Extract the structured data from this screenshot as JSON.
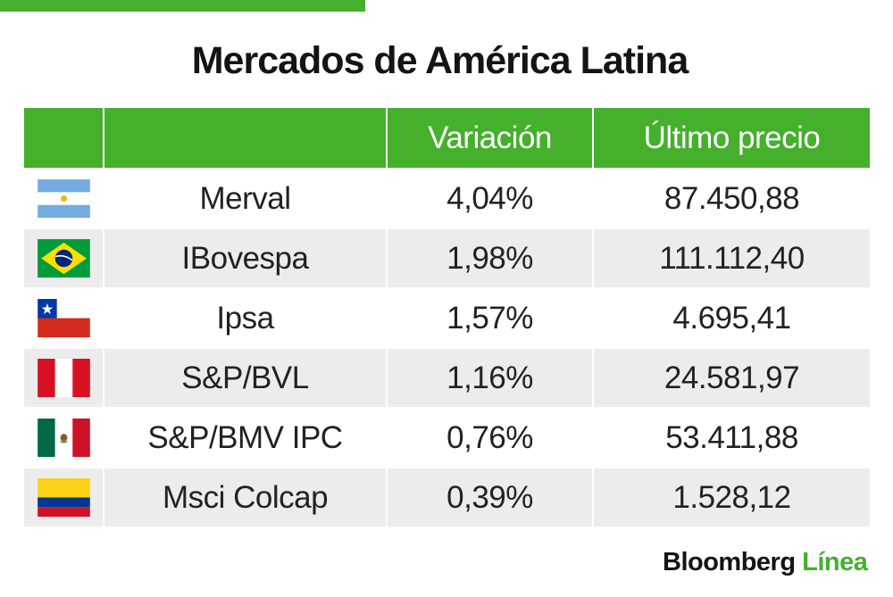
{
  "colors": {
    "accent": "#44b02c",
    "row_alt": "#ececec",
    "text": "#222222"
  },
  "chart_data": {
    "type": "table",
    "title": "Mercados de América Latina",
    "columns": [
      "",
      "",
      "Variación",
      "Último precio"
    ],
    "rows": [
      {
        "flag": "argentina-flag-icon",
        "index": "Merval",
        "variation": "4,04%",
        "price": "87.450,88"
      },
      {
        "flag": "brazil-flag-icon",
        "index": "IBovespa",
        "variation": "1,98%",
        "price": "111.112,40"
      },
      {
        "flag": "chile-flag-icon",
        "index": "Ipsa",
        "variation": "1,57%",
        "price": "4.695,41"
      },
      {
        "flag": "peru-flag-icon",
        "index": "S&P/BVL",
        "variation": "1,16%",
        "price": "24.581,97"
      },
      {
        "flag": "mexico-flag-icon",
        "index": "S&P/BMV IPC",
        "variation": "0,76%",
        "price": "53.411,88"
      },
      {
        "flag": "colombia-flag-icon",
        "index": "Msci Colcap",
        "variation": "0,39%",
        "price": "1.528,12"
      }
    ]
  },
  "logo": {
    "brand": "Bloomberg",
    "suffix": "Línea"
  }
}
